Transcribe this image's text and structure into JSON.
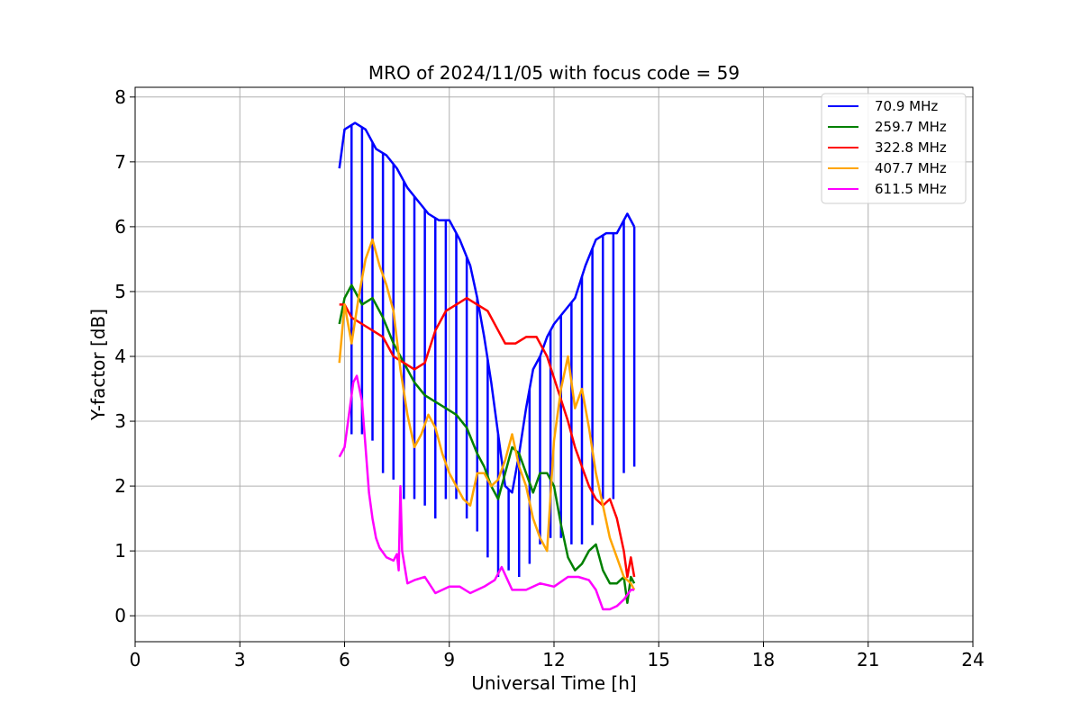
{
  "chart_data": {
    "type": "line",
    "title": "MRO of 2024/11/05 with focus code = 59",
    "xlabel": "Universal Time [h]",
    "ylabel": "Y-factor [dB]",
    "xlim": [
      0,
      24
    ],
    "ylim": [
      -0.4,
      8.15
    ],
    "xticks": [
      "0",
      "3",
      "6",
      "9",
      "12",
      "15",
      "18",
      "21",
      "24"
    ],
    "yticks": [
      "0",
      "1",
      "2",
      "3",
      "4",
      "5",
      "6",
      "7",
      "8"
    ],
    "grid": true,
    "legend_position": "top-right",
    "series": [
      {
        "name": " 70.9 MHz",
        "color": "#0000ff",
        "points": [
          [
            5.85,
            6.9
          ],
          [
            6.0,
            7.5
          ],
          [
            6.3,
            7.6
          ],
          [
            6.6,
            7.5
          ],
          [
            6.9,
            7.2
          ],
          [
            7.2,
            7.1
          ],
          [
            7.5,
            6.9
          ],
          [
            7.8,
            6.6
          ],
          [
            8.1,
            6.4
          ],
          [
            8.4,
            6.2
          ],
          [
            8.7,
            6.1
          ],
          [
            9.0,
            6.1
          ],
          [
            9.3,
            5.8
          ],
          [
            9.6,
            5.4
          ],
          [
            9.8,
            4.9
          ],
          [
            10.0,
            4.3
          ],
          [
            10.2,
            3.6
          ],
          [
            10.4,
            2.8
          ],
          [
            10.6,
            2.0
          ],
          [
            10.8,
            1.9
          ],
          [
            11.0,
            2.5
          ],
          [
            11.2,
            3.2
          ],
          [
            11.4,
            3.8
          ],
          [
            11.6,
            4.0
          ],
          [
            11.8,
            4.3
          ],
          [
            12.0,
            4.5
          ],
          [
            12.3,
            4.7
          ],
          [
            12.6,
            4.9
          ],
          [
            12.9,
            5.4
          ],
          [
            13.2,
            5.8
          ],
          [
            13.5,
            5.9
          ],
          [
            13.8,
            5.9
          ],
          [
            14.1,
            6.2
          ],
          [
            14.3,
            6.0
          ]
        ],
        "dips": [
          [
            6.2,
            2.8
          ],
          [
            6.5,
            2.8
          ],
          [
            6.8,
            2.7
          ],
          [
            7.1,
            2.2
          ],
          [
            7.4,
            2.1
          ],
          [
            7.7,
            1.8
          ],
          [
            8.0,
            1.8
          ],
          [
            8.3,
            1.7
          ],
          [
            8.6,
            1.5
          ],
          [
            8.9,
            1.8
          ],
          [
            9.2,
            1.8
          ],
          [
            9.5,
            1.5
          ],
          [
            9.8,
            1.3
          ],
          [
            10.1,
            0.9
          ],
          [
            10.4,
            0.6
          ],
          [
            10.7,
            0.7
          ],
          [
            11.0,
            0.6
          ],
          [
            11.3,
            0.8
          ],
          [
            11.6,
            1.1
          ],
          [
            11.9,
            1.2
          ],
          [
            12.2,
            1.2
          ],
          [
            12.5,
            1.1
          ],
          [
            12.8,
            1.1
          ],
          [
            13.1,
            1.4
          ],
          [
            13.4,
            1.8
          ],
          [
            13.7,
            1.8
          ],
          [
            14.0,
            2.2
          ],
          [
            14.3,
            2.3
          ]
        ]
      },
      {
        "name": "259.7 MHz",
        "color": "#008000",
        "points": [
          [
            5.85,
            4.5
          ],
          [
            6.0,
            4.9
          ],
          [
            6.2,
            5.1
          ],
          [
            6.5,
            4.8
          ],
          [
            6.8,
            4.9
          ],
          [
            7.1,
            4.6
          ],
          [
            7.4,
            4.2
          ],
          [
            7.7,
            3.9
          ],
          [
            8.0,
            3.6
          ],
          [
            8.3,
            3.4
          ],
          [
            8.6,
            3.3
          ],
          [
            8.9,
            3.2
          ],
          [
            9.2,
            3.1
          ],
          [
            9.5,
            2.9
          ],
          [
            9.8,
            2.5
          ],
          [
            10.0,
            2.3
          ],
          [
            10.2,
            2.0
          ],
          [
            10.4,
            1.8
          ],
          [
            10.6,
            2.2
          ],
          [
            10.8,
            2.6
          ],
          [
            11.0,
            2.5
          ],
          [
            11.2,
            2.2
          ],
          [
            11.4,
            1.9
          ],
          [
            11.6,
            2.2
          ],
          [
            11.8,
            2.2
          ],
          [
            12.0,
            2.0
          ],
          [
            12.2,
            1.4
          ],
          [
            12.4,
            0.9
          ],
          [
            12.6,
            0.7
          ],
          [
            12.8,
            0.8
          ],
          [
            13.0,
            1.0
          ],
          [
            13.2,
            1.1
          ],
          [
            13.4,
            0.7
          ],
          [
            13.6,
            0.5
          ],
          [
            13.8,
            0.5
          ],
          [
            14.0,
            0.6
          ],
          [
            14.1,
            0.2
          ],
          [
            14.2,
            0.6
          ],
          [
            14.3,
            0.5
          ]
        ]
      },
      {
        "name": "322.8 MHz",
        "color": "#ff0000",
        "points": [
          [
            5.85,
            4.8
          ],
          [
            6.0,
            4.8
          ],
          [
            6.2,
            4.6
          ],
          [
            6.5,
            4.5
          ],
          [
            6.8,
            4.4
          ],
          [
            7.1,
            4.3
          ],
          [
            7.4,
            4.0
          ],
          [
            7.7,
            3.9
          ],
          [
            8.0,
            3.8
          ],
          [
            8.3,
            3.9
          ],
          [
            8.6,
            4.4
          ],
          [
            8.9,
            4.7
          ],
          [
            9.2,
            4.8
          ],
          [
            9.5,
            4.9
          ],
          [
            9.8,
            4.8
          ],
          [
            10.1,
            4.7
          ],
          [
            10.4,
            4.4
          ],
          [
            10.6,
            4.2
          ],
          [
            10.9,
            4.2
          ],
          [
            11.2,
            4.3
          ],
          [
            11.5,
            4.3
          ],
          [
            11.8,
            4.0
          ],
          [
            12.1,
            3.5
          ],
          [
            12.4,
            3.0
          ],
          [
            12.6,
            2.6
          ],
          [
            12.8,
            2.3
          ],
          [
            13.0,
            2.0
          ],
          [
            13.2,
            1.8
          ],
          [
            13.4,
            1.7
          ],
          [
            13.6,
            1.8
          ],
          [
            13.8,
            1.5
          ],
          [
            14.0,
            1.0
          ],
          [
            14.1,
            0.6
          ],
          [
            14.2,
            0.9
          ],
          [
            14.3,
            0.6
          ]
        ]
      },
      {
        "name": "407.7 MHz",
        "color": "#ffa500",
        "points": [
          [
            5.85,
            3.9
          ],
          [
            6.0,
            4.8
          ],
          [
            6.2,
            4.2
          ],
          [
            6.4,
            4.9
          ],
          [
            6.6,
            5.5
          ],
          [
            6.8,
            5.8
          ],
          [
            7.0,
            5.4
          ],
          [
            7.2,
            5.1
          ],
          [
            7.4,
            4.7
          ],
          [
            7.6,
            3.8
          ],
          [
            7.8,
            3.1
          ],
          [
            8.0,
            2.6
          ],
          [
            8.2,
            2.8
          ],
          [
            8.4,
            3.1
          ],
          [
            8.6,
            2.9
          ],
          [
            8.8,
            2.5
          ],
          [
            9.0,
            2.2
          ],
          [
            9.2,
            2.0
          ],
          [
            9.4,
            1.8
          ],
          [
            9.6,
            1.7
          ],
          [
            9.8,
            2.2
          ],
          [
            10.0,
            2.2
          ],
          [
            10.2,
            2.0
          ],
          [
            10.4,
            2.1
          ],
          [
            10.6,
            2.4
          ],
          [
            10.8,
            2.8
          ],
          [
            11.0,
            2.3
          ],
          [
            11.2,
            2.0
          ],
          [
            11.4,
            1.5
          ],
          [
            11.6,
            1.2
          ],
          [
            11.8,
            1.0
          ],
          [
            12.0,
            2.7
          ],
          [
            12.2,
            3.5
          ],
          [
            12.4,
            4.0
          ],
          [
            12.6,
            3.2
          ],
          [
            12.8,
            3.5
          ],
          [
            13.0,
            2.9
          ],
          [
            13.2,
            2.2
          ],
          [
            13.4,
            1.7
          ],
          [
            13.6,
            1.2
          ],
          [
            13.8,
            0.9
          ],
          [
            14.0,
            0.6
          ],
          [
            14.2,
            0.5
          ],
          [
            14.3,
            0.4
          ]
        ]
      },
      {
        "name": "611.5 MHz",
        "color": "#ff00ff",
        "points": [
          [
            5.85,
            2.45
          ],
          [
            6.0,
            2.6
          ],
          [
            6.1,
            3.0
          ],
          [
            6.25,
            3.6
          ],
          [
            6.35,
            3.7
          ],
          [
            6.5,
            3.3
          ],
          [
            6.6,
            2.6
          ],
          [
            6.7,
            1.9
          ],
          [
            6.8,
            1.5
          ],
          [
            6.9,
            1.2
          ],
          [
            7.0,
            1.05
          ],
          [
            7.2,
            0.9
          ],
          [
            7.4,
            0.85
          ],
          [
            7.5,
            0.95
          ],
          [
            7.55,
            0.7
          ],
          [
            7.6,
            2.0
          ],
          [
            7.65,
            1.0
          ],
          [
            7.8,
            0.5
          ],
          [
            8.0,
            0.55
          ],
          [
            8.3,
            0.6
          ],
          [
            8.6,
            0.35
          ],
          [
            9.0,
            0.45
          ],
          [
            9.3,
            0.45
          ],
          [
            9.6,
            0.35
          ],
          [
            10.0,
            0.45
          ],
          [
            10.3,
            0.55
          ],
          [
            10.5,
            0.75
          ],
          [
            10.8,
            0.4
          ],
          [
            11.2,
            0.4
          ],
          [
            11.6,
            0.5
          ],
          [
            12.0,
            0.45
          ],
          [
            12.4,
            0.6
          ],
          [
            12.7,
            0.6
          ],
          [
            13.0,
            0.55
          ],
          [
            13.2,
            0.4
          ],
          [
            13.4,
            0.1
          ],
          [
            13.6,
            0.1
          ],
          [
            13.8,
            0.15
          ],
          [
            14.0,
            0.25
          ],
          [
            14.2,
            0.4
          ],
          [
            14.3,
            0.4
          ]
        ]
      }
    ]
  }
}
